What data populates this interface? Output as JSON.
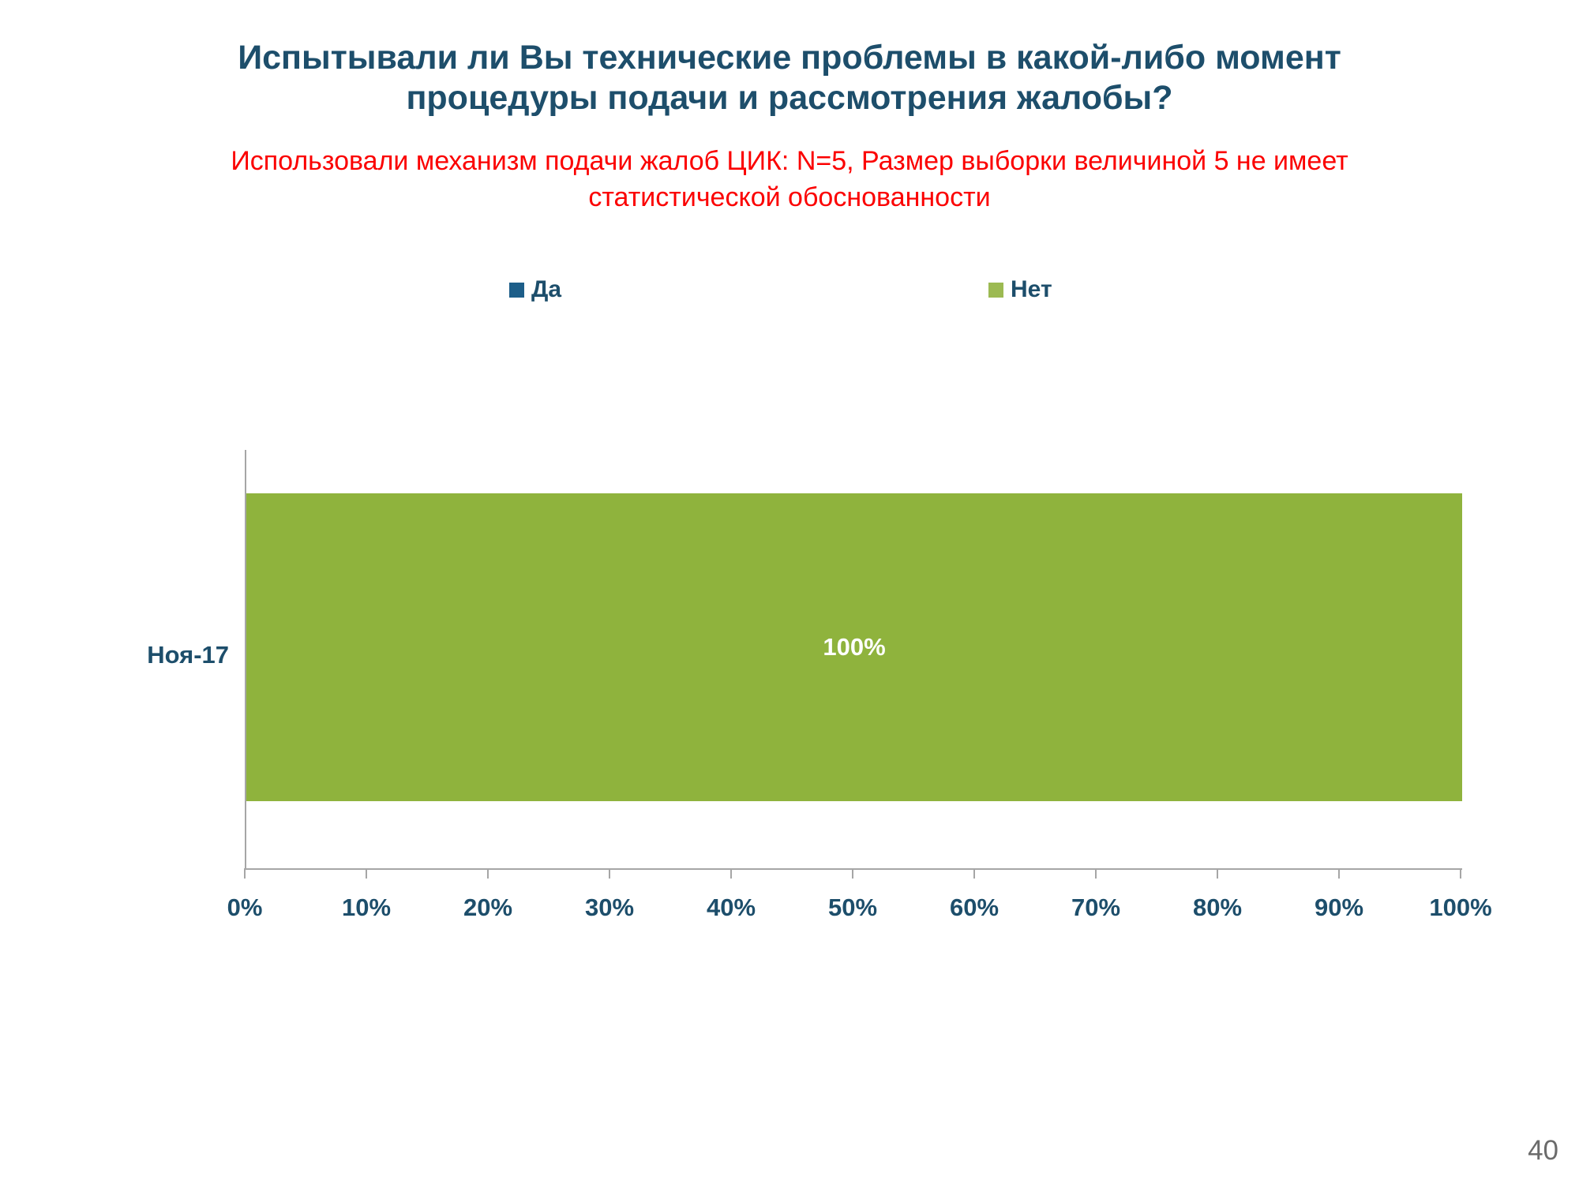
{
  "slide": {
    "title_line1": "Испытывали ли Вы технические проблемы в какой-либо момент",
    "title_line2": "процедуры подачи и рассмотрения жалобы?",
    "subtitle_line1": "Использовали механизм подачи жалоб ЦИК: N=5, Размер выборки величиной 5 не имеет",
    "subtitle_line2": "статистической обоснованности",
    "page_number": "40"
  },
  "colors": {
    "title_text": "#1d4e6b",
    "subtitle_text": "#fb0000",
    "axis_text": "#1d4e6b",
    "axis_line": "#a6a6a6",
    "series_yes": "#1d5e89",
    "series_no": "#8fb33d",
    "bar_label_text": "#ffffff",
    "page_number_text": "#6b6b6b"
  },
  "legend": [
    {
      "label": "Да",
      "color": "#1d5e89"
    },
    {
      "label": "Нет",
      "color": "#9cba52"
    }
  ],
  "chart_data": {
    "type": "bar",
    "orientation": "horizontal",
    "title": "",
    "categories": [
      "Ноя-17"
    ],
    "series": [
      {
        "name": "Да",
        "values": [
          0
        ]
      },
      {
        "name": "Нет",
        "values": [
          100
        ]
      }
    ],
    "bar_label": "100%",
    "bar_color": "#8fb33d",
    "x_ticks": [
      "0%",
      "10%",
      "20%",
      "30%",
      "40%",
      "50%",
      "60%",
      "70%",
      "80%",
      "90%",
      "100%"
    ],
    "xlim": [
      0,
      100
    ],
    "grid": false,
    "legend_position": "top"
  }
}
